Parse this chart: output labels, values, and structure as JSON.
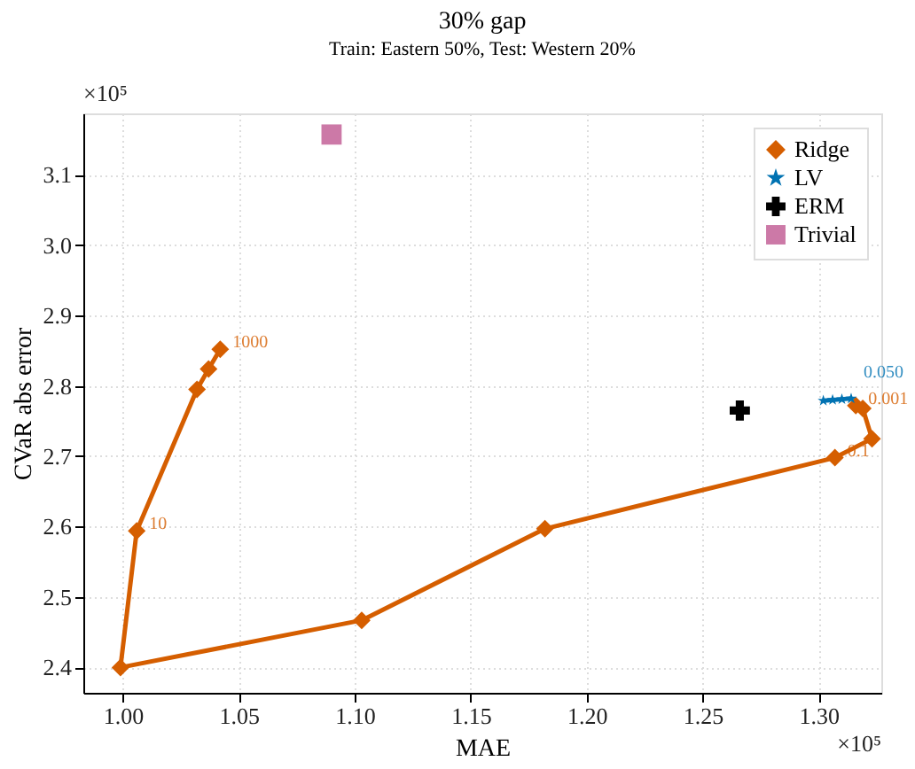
{
  "chart_data": {
    "type": "line",
    "title": "30% gap",
    "subtitle": "Train: Eastern 50%, Test: Western 20%",
    "xlabel": "MAE",
    "ylabel": "CVaR abs error",
    "annotations": [
      "×10⁵",
      "×10⁵",
      {
        "text": "1000",
        "x": 1.042,
        "y": 2.852
      },
      {
        "text": "10",
        "x": 1.006,
        "y": 2.594
      },
      {
        "text": "0.1",
        "x": 1.307,
        "y": 2.698
      },
      {
        "text": "0.001",
        "x": 1.316,
        "y": 2.772
      },
      {
        "text": "0.050",
        "x": 1.314,
        "y": 2.782
      }
    ],
    "xlim": [
      0.983,
      1.327
    ],
    "ylim": [
      2.364,
      3.187
    ],
    "xticks": [
      {
        "value": 1.0,
        "label": "1.00"
      },
      {
        "value": 1.05,
        "label": "1.05"
      },
      {
        "value": 1.1,
        "label": "1.10"
      },
      {
        "value": 1.15,
        "label": "1.15"
      },
      {
        "value": 1.2,
        "label": "1.20"
      },
      {
        "value": 1.25,
        "label": "1.25"
      },
      {
        "value": 1.3,
        "label": "1.30"
      }
    ],
    "yticks": [
      2.4,
      2.5,
      2.6,
      2.7,
      2.8,
      2.9,
      {
        "value": 3.0,
        "label": "3.0"
      },
      3.1
    ],
    "grid": true,
    "legend": "top right",
    "series": [
      {
        "name": "Ridge",
        "marker": "diamond",
        "color": "#d55e00",
        "x": [
          1.042,
          1.037,
          1.032,
          1.006,
          0.999,
          1.103,
          1.182,
          1.307,
          1.323,
          1.319,
          1.316
        ],
        "values": [
          2.852,
          2.824,
          2.795,
          2.594,
          2.4,
          2.467,
          2.597,
          2.698,
          2.725,
          2.768,
          2.772
        ]
      },
      {
        "name": "LV",
        "marker": "star",
        "color": "#0072b2",
        "x": [
          1.302,
          1.306,
          1.31,
          1.314
        ],
        "values": [
          2.779,
          2.78,
          2.781,
          2.782
        ]
      },
      {
        "name": "ERM",
        "type": "scatter",
        "marker": "cross",
        "color": "#000000",
        "x": [
          1.266
        ],
        "values": [
          2.765
        ]
      },
      {
        "name": "Trivial",
        "type": "scatter",
        "marker": "square",
        "color": "#cc79a7",
        "x": [
          1.09
        ],
        "values": [
          3.157
        ]
      }
    ]
  }
}
